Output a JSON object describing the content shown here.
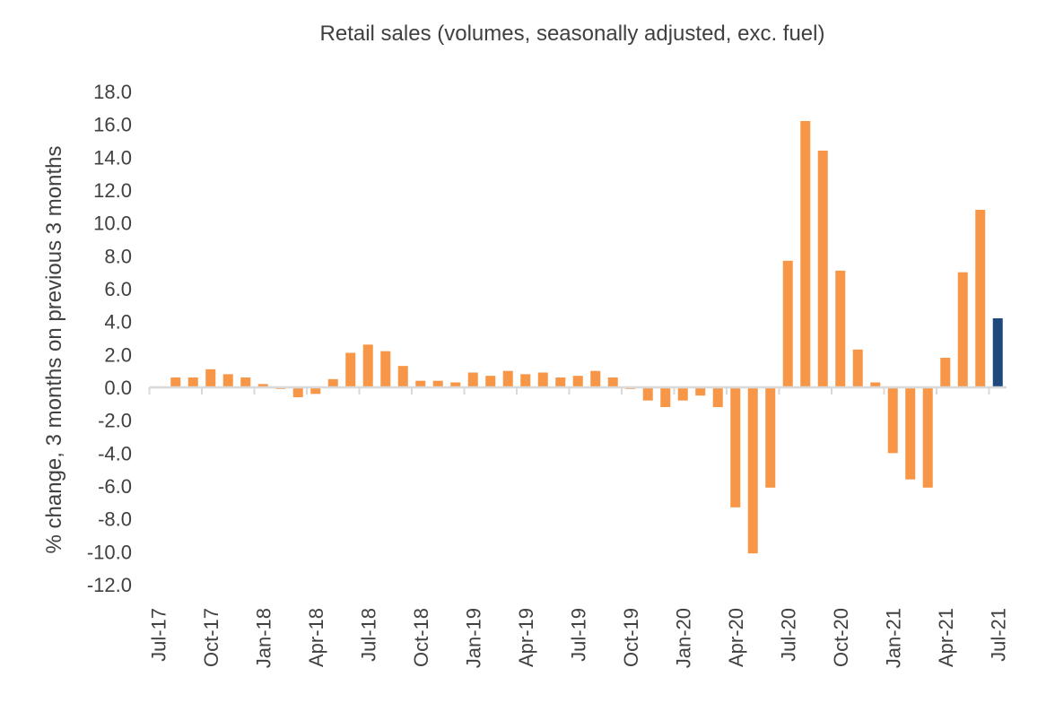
{
  "chart_data": {
    "type": "bar",
    "title": "Retail sales (volumes, seasonally adjusted, exc. fuel)",
    "xlabel": "",
    "ylabel": "% change, 3 months on previous 3 months",
    "ylim": [
      -12,
      18
    ],
    "yticks": [
      "18.0",
      "16.0",
      "14.0",
      "12.0",
      "10.0",
      "8.0",
      "6.0",
      "4.0",
      "2.0",
      "0.0",
      "-2.0",
      "-4.0",
      "-6.0",
      "-8.0",
      "-10.0",
      "-12.0"
    ],
    "ytick_values": [
      18,
      16,
      14,
      12,
      10,
      8,
      6,
      4,
      2,
      0,
      -2,
      -4,
      -6,
      -8,
      -10,
      -12
    ],
    "grid": false,
    "colors": {
      "bar": "#F79646",
      "highlight": "#1F497D",
      "axis": "#D9D9D9"
    },
    "categories": [
      "Jul-17",
      "Aug-17",
      "Sep-17",
      "Oct-17",
      "Nov-17",
      "Dec-17",
      "Jan-18",
      "Feb-18",
      "Mar-18",
      "Apr-18",
      "May-18",
      "Jun-18",
      "Jul-18",
      "Aug-18",
      "Sep-18",
      "Oct-18",
      "Nov-18",
      "Dec-18",
      "Jan-19",
      "Feb-19",
      "Mar-19",
      "Apr-19",
      "May-19",
      "Jun-19",
      "Jul-19",
      "Aug-19",
      "Sep-19",
      "Oct-19",
      "Nov-19",
      "Dec-19",
      "Jan-20",
      "Feb-20",
      "Mar-20",
      "Apr-20",
      "May-20",
      "Jun-20",
      "Jul-20",
      "Aug-20",
      "Sep-20",
      "Oct-20",
      "Nov-20",
      "Dec-20",
      "Jan-21",
      "Feb-21",
      "Mar-21",
      "Apr-21",
      "May-21",
      "Jun-21",
      "Jul-21"
    ],
    "xtick_labels": [
      "Jul-17",
      "Oct-17",
      "Jan-18",
      "Apr-18",
      "Jul-18",
      "Oct-18",
      "Jan-19",
      "Apr-19",
      "Jul-19",
      "Oct-19",
      "Jan-20",
      "Apr-20",
      "Jul-20",
      "Oct-20",
      "Jan-21",
      "Apr-21",
      "Jul-21"
    ],
    "values": [
      -0.05,
      0.6,
      0.6,
      1.1,
      0.8,
      0.6,
      0.2,
      -0.1,
      -0.6,
      -0.4,
      0.5,
      2.1,
      2.6,
      2.2,
      1.3,
      0.4,
      0.4,
      0.3,
      0.9,
      0.7,
      1.0,
      0.8,
      0.9,
      0.6,
      0.7,
      1.0,
      0.6,
      -0.1,
      -0.8,
      -1.2,
      -0.8,
      -0.5,
      -1.2,
      -7.3,
      -10.1,
      -6.1,
      7.7,
      16.2,
      14.4,
      7.1,
      2.3,
      0.3,
      -4.0,
      -5.6,
      -6.1,
      1.8,
      7.0,
      10.8,
      4.2
    ],
    "highlighted_category": "Jul-21"
  }
}
